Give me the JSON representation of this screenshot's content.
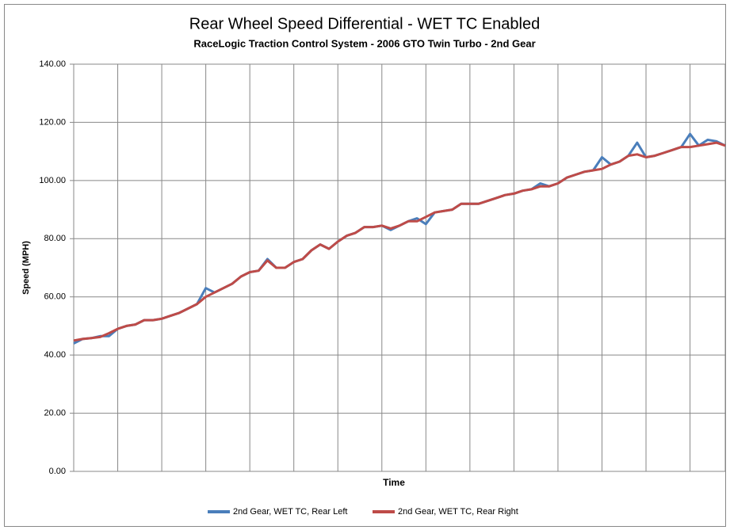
{
  "chart_data": {
    "type": "line",
    "title": "Rear Wheel Speed Differential - WET TC Enabled",
    "subtitle": "RaceLogic Traction Control System - 2006 GTO Twin Turbo - 2nd Gear",
    "x_label": "Time",
    "y_label": "Speed (MPH)",
    "ylim": [
      0,
      140
    ],
    "yticks": [
      {
        "value": 0,
        "label": "0.00"
      },
      {
        "value": 20,
        "label": "20.00"
      },
      {
        "value": 40,
        "label": "40.00"
      },
      {
        "value": 60,
        "label": "60.00"
      },
      {
        "value": 80,
        "label": "80.00"
      },
      {
        "value": 100,
        "label": "100.00"
      },
      {
        "value": 120,
        "label": "120.00"
      },
      {
        "value": 140,
        "label": "140.00"
      }
    ],
    "grid": true,
    "legend": "bottom",
    "series": [
      {
        "name": "2nd Gear, WET TC, Rear Left",
        "color": "#4a7ebb",
        "values": [
          44,
          45.5,
          45.8,
          46.5,
          46.5,
          49,
          50,
          50.5,
          52,
          52,
          52.5,
          53.5,
          54.5,
          56,
          57.5,
          63,
          61.5,
          63,
          64.5,
          67,
          68.5,
          69,
          73,
          70,
          70,
          72,
          73,
          76,
          78,
          76.5,
          79,
          81,
          82,
          84,
          84,
          84.5,
          83,
          84.5,
          86,
          87,
          85,
          89,
          89.5,
          90,
          92,
          92,
          92,
          93,
          94,
          95,
          95.5,
          96.5,
          97,
          99,
          98,
          99,
          101,
          102,
          103,
          103.5,
          108,
          105.5,
          106.5,
          108.5,
          113,
          108,
          108.5,
          109.5,
          110.5,
          111.5,
          116,
          112,
          114,
          113.5,
          112
        ]
      },
      {
        "name": "2nd Gear, WET TC, Rear Right",
        "color": "#be4b48",
        "values": [
          45,
          45.5,
          45.8,
          46.2,
          47.5,
          49,
          50,
          50.5,
          52,
          52,
          52.5,
          53.5,
          54.5,
          56,
          57.5,
          60,
          61.5,
          63,
          64.5,
          67,
          68.5,
          69,
          72.5,
          70,
          70,
          72,
          73,
          76,
          78,
          76.5,
          79,
          81,
          82,
          84,
          84,
          84.5,
          83.5,
          84.5,
          86,
          86,
          87.5,
          89,
          89.5,
          90,
          92,
          92,
          92,
          93,
          94,
          95,
          95.5,
          96.5,
          97,
          98,
          98,
          99,
          101,
          102,
          103,
          103.5,
          104,
          105.5,
          106.5,
          108.5,
          109,
          108,
          108.5,
          109.5,
          110.5,
          111.5,
          111.5,
          112,
          112.5,
          113,
          112
        ]
      }
    ]
  }
}
